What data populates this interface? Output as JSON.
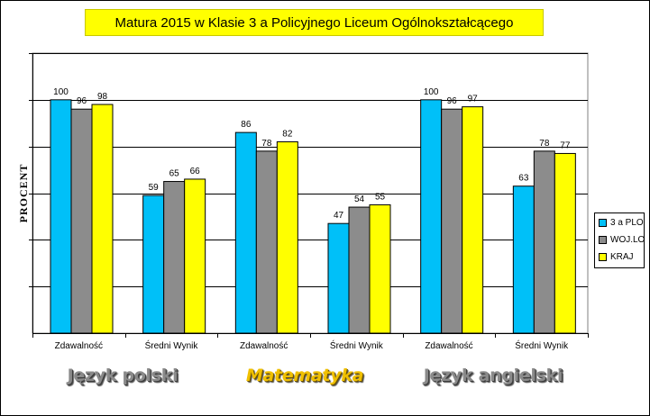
{
  "colors": {
    "series": [
      "#00c0f8",
      "#8c8c8c",
      "#ffff00"
    ],
    "plot_background": "#ffffff",
    "title_background": "#ffff00"
  },
  "chart_data": {
    "type": "bar",
    "title": "Matura 2015 w Klasie 3 a Policyjnego Liceum Ogólnokształcącego",
    "ylabel": "PROCENT",
    "xlabel": "",
    "ylim": [
      0,
      100
    ],
    "grid": true,
    "legend_position": "right",
    "categories": [
      "Zdawalność",
      "Średni Wynik",
      "Zdawalność",
      "Średni Wynik",
      "Zdawalność",
      "Średni Wynik"
    ],
    "groups": [
      "Język polski",
      "Matematyka",
      "Język angielski"
    ],
    "series": [
      {
        "name": "3 a PLO",
        "values": [
          100,
          59,
          86,
          47,
          100,
          63
        ]
      },
      {
        "name": "WOJ.LO",
        "values": [
          96,
          65,
          78,
          54,
          96,
          78
        ]
      },
      {
        "name": "KRAJ",
        "values": [
          98,
          66,
          82,
          55,
          97,
          77
        ]
      }
    ]
  }
}
